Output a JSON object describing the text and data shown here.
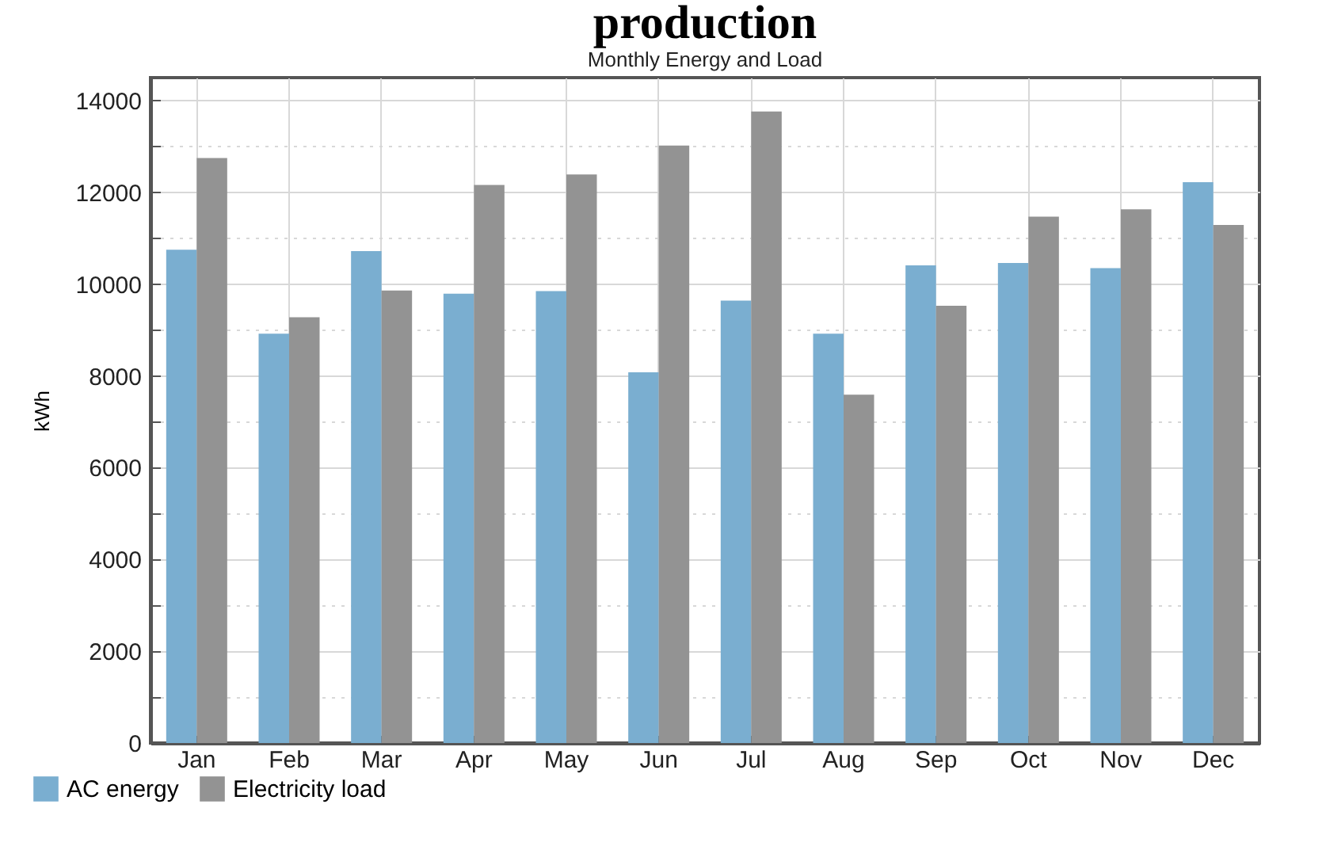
{
  "chart_data": {
    "type": "bar",
    "title": "production",
    "subtitle": "Monthly Energy and Load",
    "ylabel": "kWh",
    "categories": [
      "Jan",
      "Feb",
      "Mar",
      "Apr",
      "May",
      "Jun",
      "Jul",
      "Aug",
      "Sep",
      "Oct",
      "Nov",
      "Dec"
    ],
    "series": [
      {
        "name": "AC energy",
        "color": "#7aaed0",
        "values": [
          10750,
          8920,
          10720,
          9790,
          9850,
          8080,
          9640,
          8920,
          10410,
          10460,
          10350,
          12220
        ]
      },
      {
        "name": "Electricity load",
        "color": "#939393",
        "values": [
          12750,
          9280,
          9860,
          12160,
          12390,
          13020,
          13760,
          7590,
          9530,
          11470,
          11630,
          11290
        ]
      }
    ],
    "ylim": [
      0,
      14500
    ],
    "yticks": [
      0,
      {
        "value": 1000,
        "label": null
      },
      2000,
      {
        "value": 3000,
        "label": null
      },
      4000,
      {
        "value": 5000,
        "label": null
      },
      6000,
      {
        "value": 7000,
        "label": null
      },
      8000,
      {
        "value": 9000,
        "label": null
      },
      10000,
      {
        "value": 11000,
        "label": null
      },
      12000,
      {
        "value": 13000,
        "label": null
      },
      14000
    ],
    "grid": true,
    "legend": "bottom left"
  }
}
